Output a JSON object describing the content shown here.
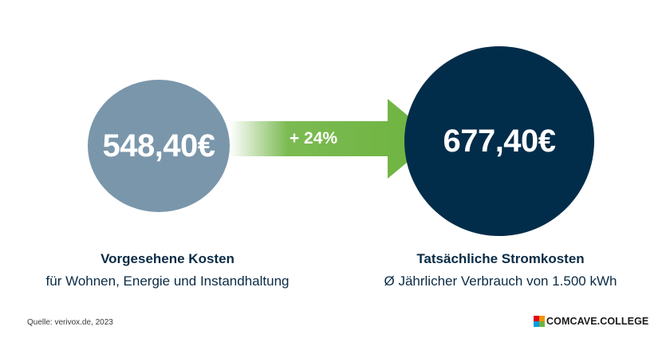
{
  "left": {
    "amount": "548,40€",
    "title": "Vorgesehene Kosten",
    "subtitle": "für Wohnen, Energie und Instandhaltung",
    "color": "#7a96ab"
  },
  "right": {
    "amount": "677,40€",
    "title": "Tatsächliche Stromkosten",
    "subtitle": "Ø Jährlicher Verbrauch von 1.500 kWh",
    "color": "#022d4a"
  },
  "arrow": {
    "label": "+ 24%",
    "color": "#6db33f"
  },
  "source": "Quelle: verivox.de, 2023",
  "logo": {
    "text": "COMCAVE.COLLEGE"
  }
}
